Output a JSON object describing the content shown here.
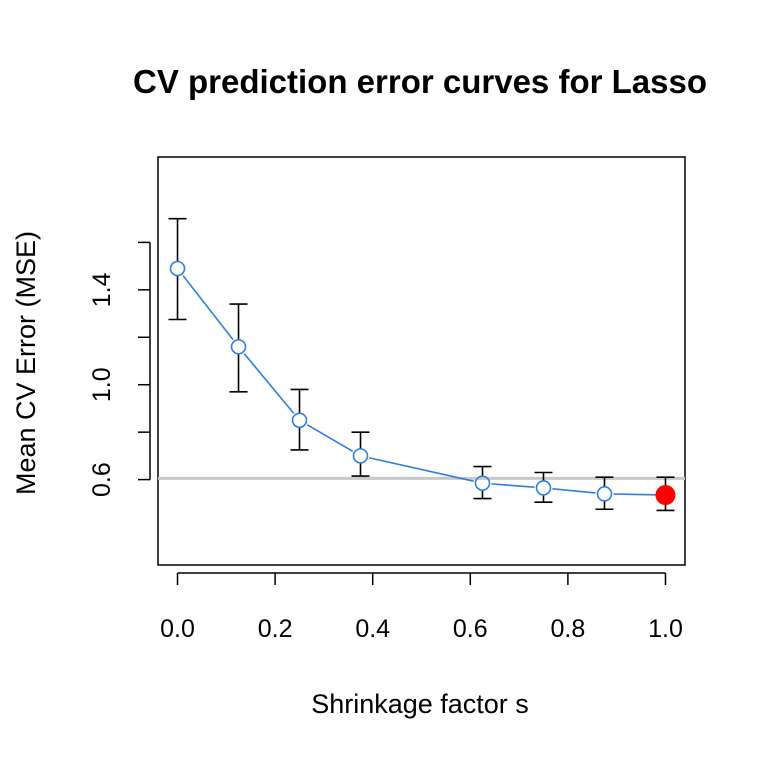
{
  "chart_data": {
    "type": "line",
    "title": "CV prediction error curves for Lasso",
    "xlabel": "Shrinkage factor s",
    "ylabel": "Mean CV Error (MSE)",
    "xlim": [
      -0.04,
      1.04
    ],
    "ylim": [
      0.24,
      1.96
    ],
    "x_ticks": [
      0.0,
      0.2,
      0.4,
      0.6,
      0.8,
      1.0
    ],
    "x_tick_labels": [
      "0.0",
      "0.2",
      "0.4",
      "0.6",
      "0.8",
      "1.0"
    ],
    "y_ticks": [
      0.6,
      0.8,
      1.0,
      1.2,
      1.4,
      1.6
    ],
    "y_tick_labels": [
      "0.6",
      "",
      "1.0",
      "",
      "1.4",
      ""
    ],
    "grid": false,
    "reference_line": {
      "y": 0.605,
      "color": "#c8c8c8"
    },
    "series": [
      {
        "x": [
          0.0,
          0.125,
          0.25,
          0.375,
          0.625,
          0.75,
          0.875,
          1.0
        ],
        "y": [
          1.49,
          1.16,
          0.85,
          0.7,
          0.585,
          0.565,
          0.54,
          0.535
        ],
        "error_lower": [
          1.275,
          0.97,
          0.725,
          0.615,
          0.52,
          0.505,
          0.475,
          0.47
        ],
        "error_upper": [
          1.7,
          1.34,
          0.98,
          0.8,
          0.655,
          0.63,
          0.61,
          0.61
        ],
        "color": "#2f7fe0",
        "errorbar_color": "#000000"
      }
    ],
    "highlight": {
      "x": 1.0,
      "y": 0.535,
      "color": "#ff0000"
    }
  }
}
